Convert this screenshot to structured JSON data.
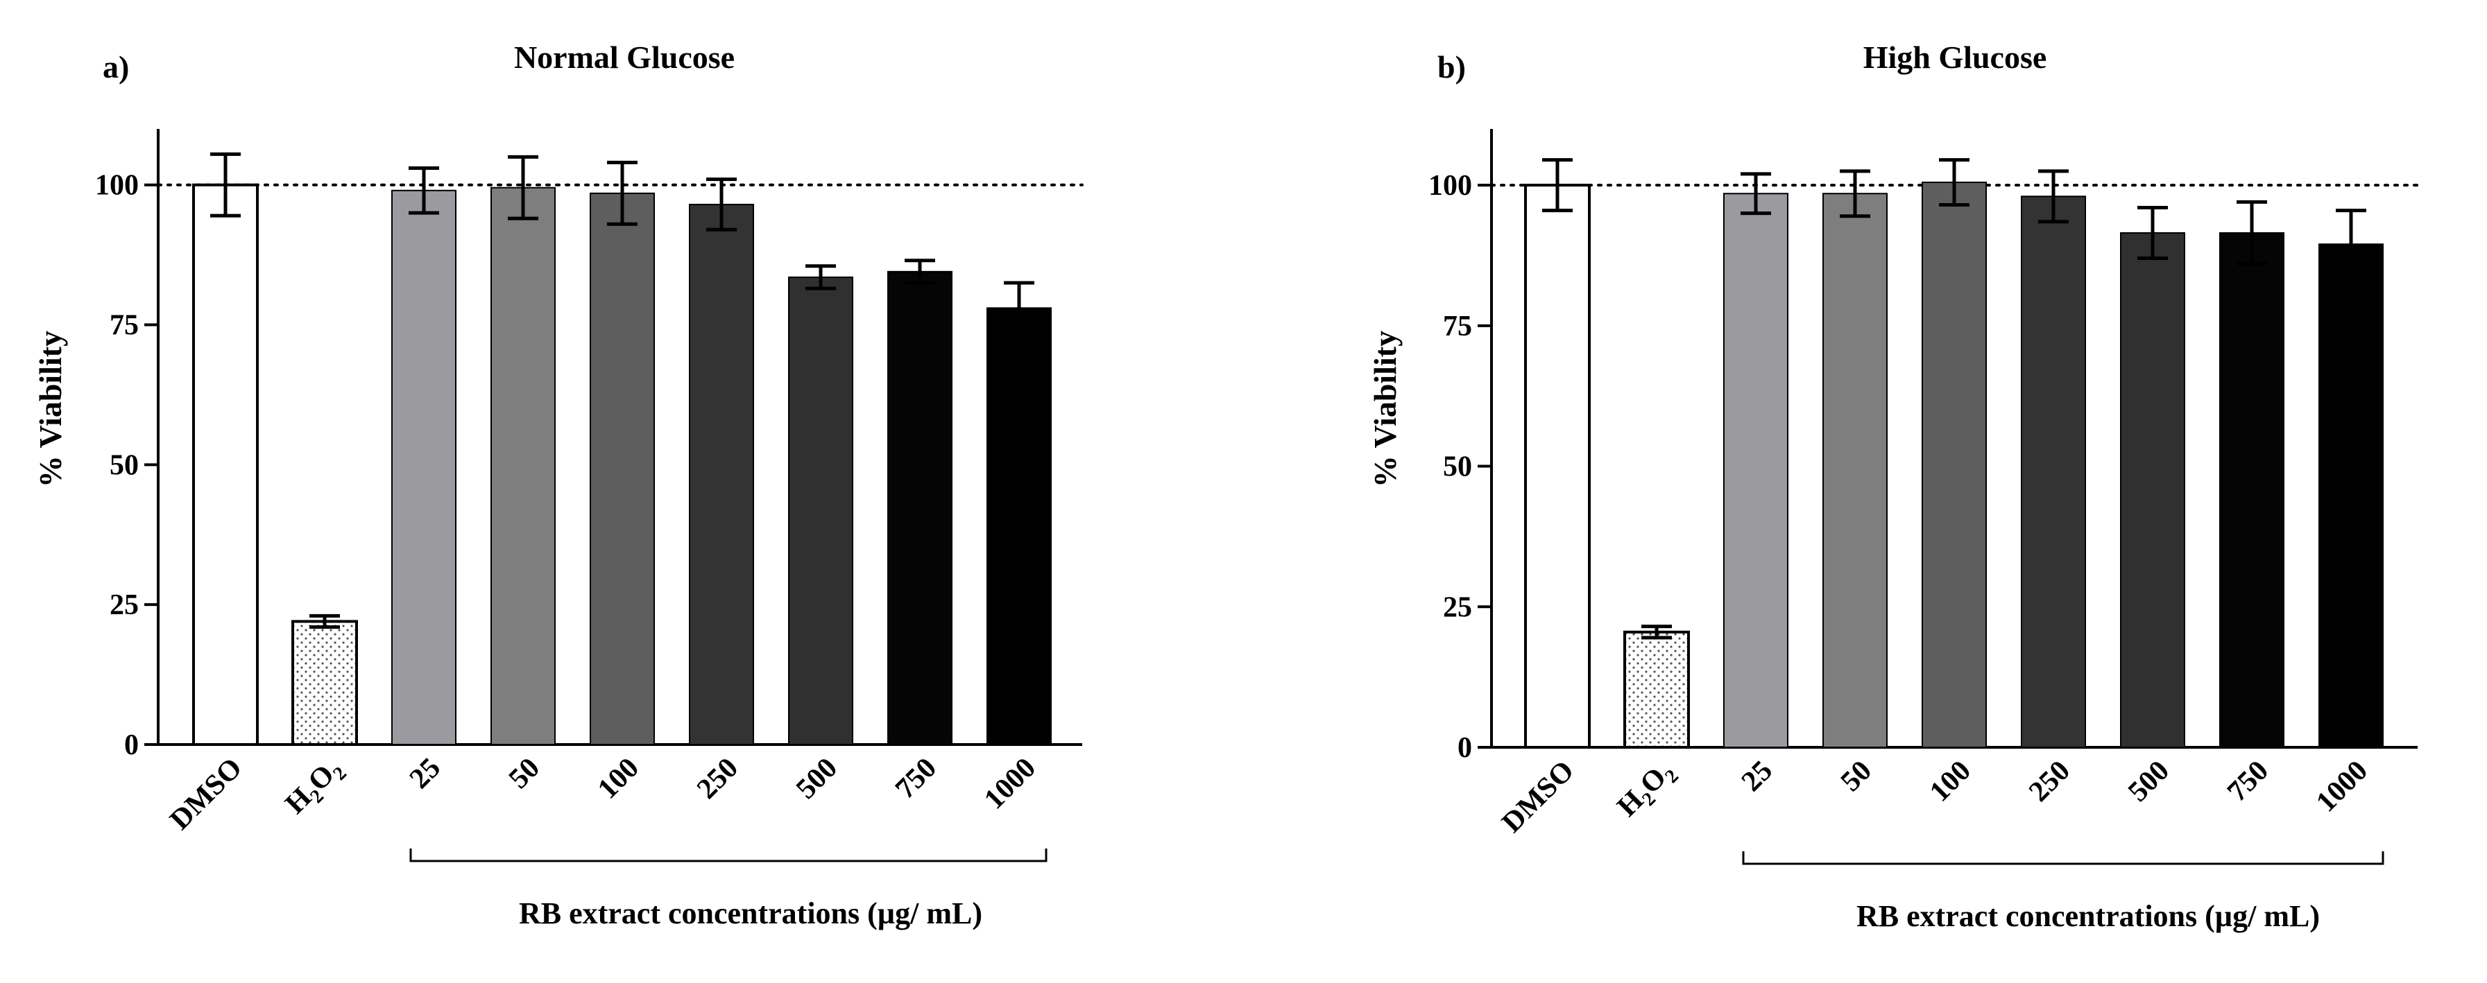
{
  "chart_data": [
    {
      "type": "bar",
      "panel": "a)",
      "title": "Normal Glucose",
      "ylabel": "% Viability",
      "ylim": [
        0,
        110
      ],
      "yticks": [
        "0",
        "25",
        "50",
        "75",
        "100"
      ],
      "reference_line": 100,
      "categories": [
        "DMSO",
        "H2O2",
        "25",
        "50",
        "100",
        "250",
        "500",
        "750",
        "1000"
      ],
      "values": [
        100,
        22,
        99,
        99.5,
        98.5,
        96.5,
        83.5,
        84.5,
        78
      ],
      "errors": [
        5.5,
        1,
        4,
        5.5,
        5.5,
        4.5,
        2,
        2,
        4.5
      ],
      "bar_colors": [
        "#ffffff",
        "#ffffff",
        "#9b9b9f",
        "#7e7e7e",
        "#5e5e5e",
        "#333333",
        "#303030",
        "#050505",
        "#000000"
      ],
      "group_label": "RB extract concentrations (µg/ mL)"
    },
    {
      "type": "bar",
      "panel": "b)",
      "title": "High Glucose",
      "ylabel": "% Viability",
      "ylim": [
        0,
        110
      ],
      "yticks": [
        "0",
        "25",
        "50",
        "75",
        "100"
      ],
      "reference_line": 100,
      "categories": [
        "DMSO",
        "H2O2",
        "25",
        "50",
        "100",
        "250",
        "500",
        "750",
        "1000"
      ],
      "values": [
        100,
        20.5,
        98.5,
        98.5,
        100.5,
        98,
        91.5,
        91.5,
        89.5
      ],
      "errors": [
        4.5,
        1,
        3.5,
        4,
        4,
        4.5,
        4.5,
        5.5,
        6
      ],
      "bar_colors": [
        "#ffffff",
        "#ffffff",
        "#9b9b9f",
        "#7e7e7e",
        "#5e5e5e",
        "#333333",
        "#303030",
        "#050505",
        "#000000"
      ],
      "group_label": "RB extract concentrations (µg/ mL)"
    }
  ]
}
